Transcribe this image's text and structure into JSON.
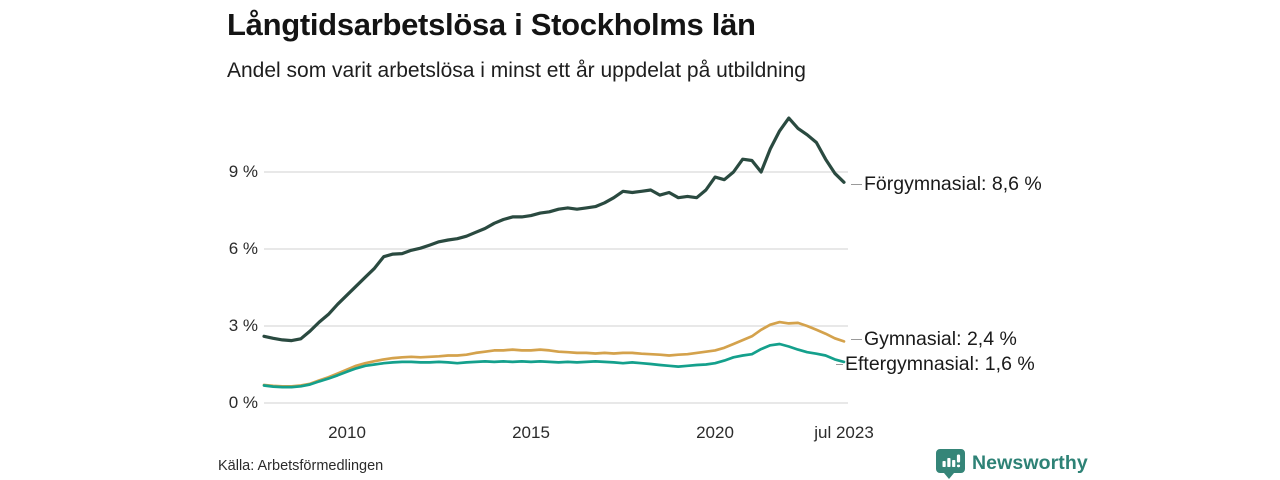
{
  "header": {
    "title": "Långtidsarbetslösa i Stockholms län",
    "subtitle": "Andel som varit arbetslösa i minst ett år uppdelat på utbildning"
  },
  "source": {
    "text": "Källa: Arbetsförmedlingen"
  },
  "brand": {
    "name": "Newsworthy",
    "color": "#2e8276",
    "icon": "bar-chart-speech-bubble"
  },
  "colors": {
    "grid": "#d9d9d9",
    "text": "#1a1a1a",
    "forgymnasial": "#2a4a40",
    "gymnasial": "#d4a24c",
    "eftergymnasial": "#14a08c"
  },
  "chart_data": {
    "type": "line",
    "title": "Långtidsarbetslösa i Stockholms län",
    "subtitle": "Andel som varit arbetslösa i minst ett år uppdelat på utbildning",
    "xlabel": "",
    "ylabel": "",
    "x_start": 2007.75,
    "x_step": 0.25,
    "x_end": 2023.5,
    "ylim": [
      0,
      11.5
    ],
    "grid": "horizontal",
    "legend_position": "right-end-labels",
    "yticks": [
      {
        "label": "0 %",
        "value": 0
      },
      {
        "label": "3 %",
        "value": 3
      },
      {
        "label": "6 %",
        "value": 6
      },
      {
        "label": "9 %",
        "value": 9
      }
    ],
    "xticks": [
      {
        "label": "2010",
        "year": 2010
      },
      {
        "label": "2015",
        "year": 2015
      },
      {
        "label": "2020",
        "year": 2020
      },
      {
        "label": "jul 2023",
        "year": 2023.5
      }
    ],
    "series": [
      {
        "name": "Förgymnasial",
        "end_label": "Förgymnasial: 8,6 %",
        "last_value": 8.6,
        "color": "#2a4a40",
        "stroke_width": 3.2,
        "values": [
          2.6,
          2.52,
          2.46,
          2.43,
          2.5,
          2.8,
          3.15,
          3.45,
          3.85,
          4.2,
          4.55,
          4.9,
          5.25,
          5.7,
          5.8,
          5.82,
          5.95,
          6.03,
          6.15,
          6.28,
          6.35,
          6.4,
          6.5,
          6.65,
          6.8,
          7.0,
          7.15,
          7.25,
          7.25,
          7.3,
          7.4,
          7.45,
          7.55,
          7.6,
          7.55,
          7.6,
          7.65,
          7.8,
          8.0,
          8.25,
          8.2,
          8.25,
          8.3,
          8.1,
          8.2,
          8.0,
          8.05,
          8.0,
          8.3,
          8.8,
          8.7,
          9.0,
          9.5,
          9.45,
          9.0,
          9.9,
          10.6,
          11.1,
          10.7,
          10.45,
          10.15,
          9.5,
          8.95,
          8.6
        ]
      },
      {
        "name": "Gymnasial",
        "end_label": "Gymnasial: 2,4 %",
        "last_value": 2.4,
        "color": "#d4a24c",
        "stroke_width": 2.7,
        "values": [
          0.7,
          0.67,
          0.65,
          0.65,
          0.68,
          0.75,
          0.88,
          1.0,
          1.15,
          1.3,
          1.45,
          1.55,
          1.63,
          1.7,
          1.75,
          1.78,
          1.8,
          1.78,
          1.8,
          1.82,
          1.85,
          1.85,
          1.88,
          1.95,
          2.0,
          2.05,
          2.05,
          2.08,
          2.05,
          2.05,
          2.08,
          2.05,
          2.0,
          1.98,
          1.95,
          1.95,
          1.93,
          1.95,
          1.93,
          1.95,
          1.95,
          1.92,
          1.9,
          1.88,
          1.85,
          1.88,
          1.9,
          1.95,
          2.0,
          2.05,
          2.15,
          2.3,
          2.45,
          2.6,
          2.85,
          3.05,
          3.15,
          3.1,
          3.12,
          3.0,
          2.85,
          2.7,
          2.52,
          2.4
        ]
      },
      {
        "name": "Eftergymnasial",
        "end_label": "Eftergymnasial: 1,6 %",
        "last_value": 1.6,
        "color": "#14a08c",
        "stroke_width": 2.7,
        "values": [
          0.68,
          0.64,
          0.62,
          0.62,
          0.65,
          0.72,
          0.84,
          0.95,
          1.08,
          1.22,
          1.35,
          1.45,
          1.5,
          1.55,
          1.58,
          1.6,
          1.6,
          1.58,
          1.58,
          1.6,
          1.58,
          1.55,
          1.58,
          1.6,
          1.62,
          1.6,
          1.62,
          1.6,
          1.62,
          1.6,
          1.62,
          1.6,
          1.58,
          1.6,
          1.58,
          1.6,
          1.62,
          1.6,
          1.58,
          1.55,
          1.58,
          1.55,
          1.52,
          1.48,
          1.45,
          1.42,
          1.45,
          1.48,
          1.5,
          1.55,
          1.65,
          1.78,
          1.85,
          1.9,
          2.1,
          2.25,
          2.3,
          2.2,
          2.08,
          1.98,
          1.92,
          1.85,
          1.7,
          1.6
        ]
      }
    ]
  }
}
